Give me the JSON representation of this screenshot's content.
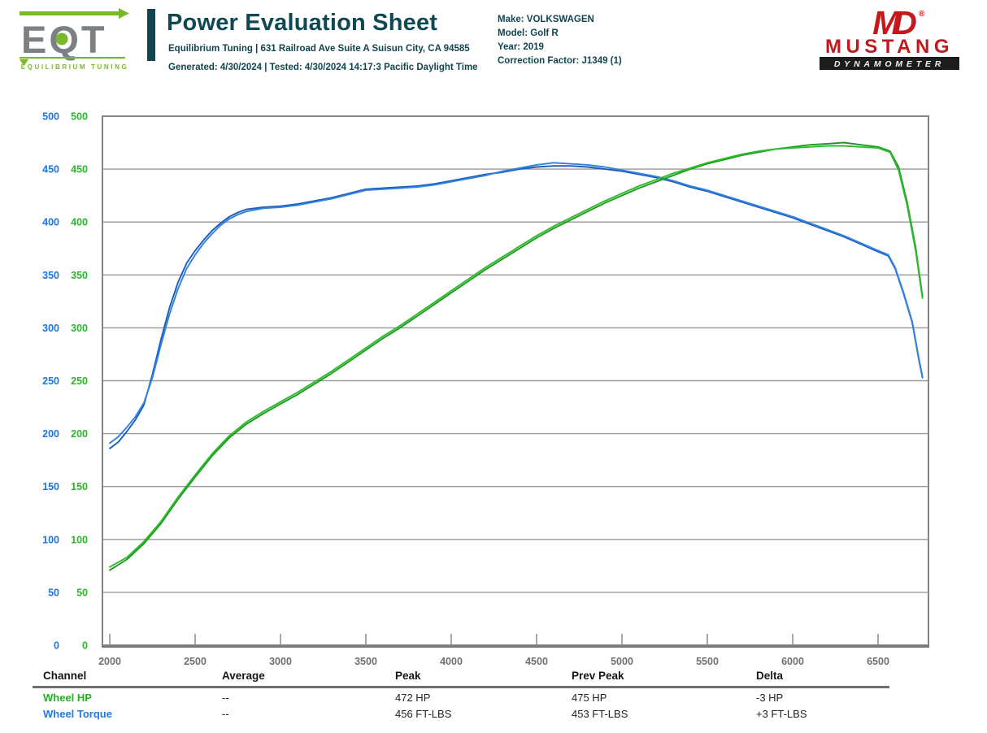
{
  "header": {
    "eqt_logo": {
      "monogram": "EQT",
      "tagline": "EQUILIBRIUM TUNING"
    },
    "title": "Power Evaluation Sheet",
    "subtitle": "Equilibrium Tuning | 631 Railroad Ave Suite A Suisun City, CA 94585",
    "generated_line": "Generated: 4/30/2024 | Tested: 4/30/2024 14:17:3 Pacific Daylight Time",
    "vehicle_lines": [
      "Make: VOLKSWAGEN",
      "Model: Golf R",
      "Year: 2019",
      "Correction Factor: J1349 (1)"
    ],
    "dyno_logo": {
      "monogram": "MD",
      "reg": "®",
      "name": "MUSTANG",
      "sub": "DYNAMOMETER"
    }
  },
  "chart_data": {
    "type": "line",
    "grid": true,
    "x_axis": {
      "min": 1955,
      "max": 6795,
      "ticks": [
        2000,
        2500,
        3000,
        3500,
        4000,
        4500,
        5000,
        5500,
        6000,
        6500
      ]
    },
    "y_axis": {
      "min": 0,
      "max": 500,
      "step": 50,
      "torque_color": "#1b75e0",
      "hp_color": "#2db52d"
    },
    "series": [
      {
        "id": "wheel-torque-prev",
        "name": "Wheel Torque (previous run)",
        "unit": "FT-LBS",
        "color": "#1f5cb8",
        "points": [
          [
            2000,
            186
          ],
          [
            2050,
            192
          ],
          [
            2100,
            202
          ],
          [
            2150,
            213
          ],
          [
            2200,
            227
          ],
          [
            2250,
            256
          ],
          [
            2300,
            289
          ],
          [
            2350,
            319
          ],
          [
            2400,
            343
          ],
          [
            2450,
            361
          ],
          [
            2500,
            373
          ],
          [
            2550,
            383
          ],
          [
            2600,
            392
          ],
          [
            2650,
            399
          ],
          [
            2700,
            405
          ],
          [
            2750,
            409
          ],
          [
            2800,
            412
          ],
          [
            2900,
            414
          ],
          [
            3000,
            415
          ],
          [
            3100,
            417
          ],
          [
            3200,
            420
          ],
          [
            3300,
            423
          ],
          [
            3400,
            427
          ],
          [
            3500,
            431
          ],
          [
            3600,
            432
          ],
          [
            3700,
            433
          ],
          [
            3800,
            434
          ],
          [
            3900,
            436
          ],
          [
            4000,
            439
          ],
          [
            4100,
            442
          ],
          [
            4200,
            445
          ],
          [
            4300,
            447
          ],
          [
            4400,
            450
          ],
          [
            4500,
            452
          ],
          [
            4600,
            453
          ],
          [
            4700,
            453
          ],
          [
            4800,
            452
          ],
          [
            4900,
            450
          ],
          [
            5000,
            448
          ],
          [
            5100,
            445
          ],
          [
            5200,
            442
          ],
          [
            5300,
            438
          ],
          [
            5400,
            433
          ],
          [
            5500,
            429
          ],
          [
            5600,
            424
          ],
          [
            5700,
            419
          ],
          [
            5800,
            414
          ],
          [
            5900,
            409
          ],
          [
            6000,
            404
          ],
          [
            6100,
            398
          ],
          [
            6200,
            392
          ],
          [
            6300,
            386
          ],
          [
            6400,
            379
          ],
          [
            6500,
            372
          ],
          [
            6560,
            368
          ],
          [
            6600,
            356
          ],
          [
            6650,
            332
          ],
          [
            6700,
            305
          ],
          [
            6740,
            269
          ],
          [
            6760,
            253
          ]
        ]
      },
      {
        "id": "wheel-torque",
        "name": "Wheel Torque",
        "unit": "FT-LBS",
        "color": "#2e82e2",
        "points": [
          [
            2000,
            191
          ],
          [
            2050,
            197
          ],
          [
            2100,
            206
          ],
          [
            2150,
            216
          ],
          [
            2200,
            229
          ],
          [
            2250,
            253
          ],
          [
            2300,
            284
          ],
          [
            2350,
            313
          ],
          [
            2400,
            337
          ],
          [
            2450,
            356
          ],
          [
            2500,
            369
          ],
          [
            2550,
            380
          ],
          [
            2600,
            389
          ],
          [
            2650,
            397
          ],
          [
            2700,
            403
          ],
          [
            2750,
            407
          ],
          [
            2800,
            410
          ],
          [
            2900,
            413
          ],
          [
            3000,
            414
          ],
          [
            3100,
            416
          ],
          [
            3200,
            419
          ],
          [
            3300,
            422
          ],
          [
            3400,
            426
          ],
          [
            3500,
            430
          ],
          [
            3600,
            431
          ],
          [
            3700,
            432
          ],
          [
            3800,
            433
          ],
          [
            3900,
            435
          ],
          [
            4000,
            438
          ],
          [
            4100,
            441
          ],
          [
            4200,
            444
          ],
          [
            4300,
            448
          ],
          [
            4400,
            451
          ],
          [
            4500,
            454
          ],
          [
            4600,
            456
          ],
          [
            4700,
            455
          ],
          [
            4800,
            454
          ],
          [
            4900,
            452
          ],
          [
            5000,
            449
          ],
          [
            5100,
            446
          ],
          [
            5200,
            443
          ],
          [
            5300,
            439
          ],
          [
            5400,
            434
          ],
          [
            5500,
            430
          ],
          [
            5600,
            425
          ],
          [
            5700,
            420
          ],
          [
            5800,
            415
          ],
          [
            5900,
            410
          ],
          [
            6000,
            405
          ],
          [
            6100,
            399
          ],
          [
            6200,
            393
          ],
          [
            6300,
            387
          ],
          [
            6400,
            380
          ],
          [
            6500,
            373
          ],
          [
            6560,
            369
          ],
          [
            6600,
            357
          ],
          [
            6650,
            333
          ],
          [
            6700,
            306
          ],
          [
            6740,
            270
          ],
          [
            6760,
            254
          ]
        ]
      },
      {
        "id": "wheel-hp-prev",
        "name": "Wheel HP (previous run)",
        "unit": "HP",
        "color": "#1e9b1e",
        "points": [
          [
            2000,
            71
          ],
          [
            2100,
            81
          ],
          [
            2200,
            96
          ],
          [
            2300,
            115
          ],
          [
            2400,
            138
          ],
          [
            2500,
            159
          ],
          [
            2600,
            179
          ],
          [
            2700,
            196
          ],
          [
            2800,
            209
          ],
          [
            2900,
            219
          ],
          [
            3000,
            228
          ],
          [
            3100,
            237
          ],
          [
            3200,
            247
          ],
          [
            3300,
            257
          ],
          [
            3400,
            268
          ],
          [
            3500,
            279
          ],
          [
            3600,
            290
          ],
          [
            3700,
            300
          ],
          [
            3800,
            311
          ],
          [
            3900,
            322
          ],
          [
            4000,
            333
          ],
          [
            4100,
            344
          ],
          [
            4200,
            355
          ],
          [
            4300,
            365
          ],
          [
            4400,
            375
          ],
          [
            4500,
            385
          ],
          [
            4600,
            394
          ],
          [
            4700,
            402
          ],
          [
            4800,
            410
          ],
          [
            4900,
            418
          ],
          [
            5000,
            425
          ],
          [
            5100,
            432
          ],
          [
            5200,
            438
          ],
          [
            5300,
            444
          ],
          [
            5400,
            450
          ],
          [
            5500,
            455
          ],
          [
            5600,
            459
          ],
          [
            5700,
            463
          ],
          [
            5800,
            466
          ],
          [
            5900,
            469
          ],
          [
            6000,
            471
          ],
          [
            6100,
            473
          ],
          [
            6200,
            474
          ],
          [
            6300,
            475
          ],
          [
            6400,
            473
          ],
          [
            6500,
            471
          ],
          [
            6570,
            467
          ],
          [
            6620,
            452
          ],
          [
            6670,
            419
          ],
          [
            6720,
            376
          ],
          [
            6760,
            330
          ]
        ]
      },
      {
        "id": "wheel-hp",
        "name": "Wheel HP",
        "unit": "HP",
        "color": "#2fbb2f",
        "points": [
          [
            2000,
            74
          ],
          [
            2100,
            83
          ],
          [
            2200,
            98
          ],
          [
            2300,
            117
          ],
          [
            2400,
            140
          ],
          [
            2500,
            161
          ],
          [
            2600,
            181
          ],
          [
            2700,
            198
          ],
          [
            2800,
            211
          ],
          [
            2900,
            221
          ],
          [
            3000,
            230
          ],
          [
            3100,
            239
          ],
          [
            3200,
            249
          ],
          [
            3300,
            259
          ],
          [
            3400,
            270
          ],
          [
            3500,
            281
          ],
          [
            3600,
            292
          ],
          [
            3700,
            302
          ],
          [
            3800,
            313
          ],
          [
            3900,
            324
          ],
          [
            4000,
            335
          ],
          [
            4100,
            346
          ],
          [
            4200,
            357
          ],
          [
            4300,
            367
          ],
          [
            4400,
            377
          ],
          [
            4500,
            387
          ],
          [
            4600,
            396
          ],
          [
            4700,
            404
          ],
          [
            4800,
            412
          ],
          [
            4900,
            420
          ],
          [
            5000,
            427
          ],
          [
            5100,
            434
          ],
          [
            5200,
            440
          ],
          [
            5300,
            446
          ],
          [
            5400,
            451
          ],
          [
            5500,
            456
          ],
          [
            5600,
            460
          ],
          [
            5700,
            464
          ],
          [
            5800,
            467
          ],
          [
            5900,
            469
          ],
          [
            6000,
            470
          ],
          [
            6100,
            471
          ],
          [
            6200,
            472
          ],
          [
            6300,
            472
          ],
          [
            6400,
            471
          ],
          [
            6500,
            470
          ],
          [
            6570,
            466
          ],
          [
            6620,
            449
          ],
          [
            6670,
            416
          ],
          [
            6720,
            373
          ],
          [
            6760,
            328
          ]
        ]
      }
    ]
  },
  "table": {
    "headers": [
      "Channel",
      "Average",
      "Peak",
      "Prev Peak",
      "Delta"
    ],
    "rows": [
      {
        "channel": "Wheel HP",
        "average": "--",
        "peak": "472 HP",
        "prev_peak": "475 HP",
        "delta": "-3 HP"
      },
      {
        "channel": "Wheel Torque",
        "average": "--",
        "peak": "456 FT-LBS",
        "prev_peak": "453 FT-LBS",
        "delta": "+3 FT-LBS"
      }
    ]
  }
}
